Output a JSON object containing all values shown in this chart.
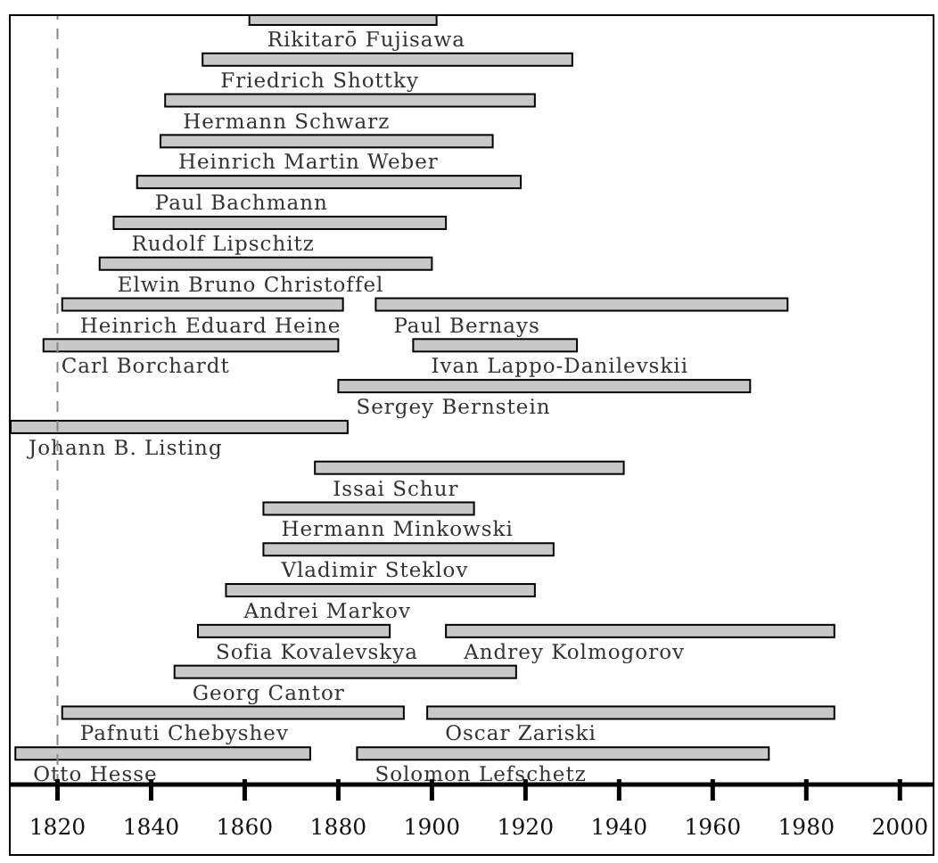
{
  "chart_data": {
    "type": "bar",
    "orientation": "horizontal",
    "categories": [
      null,
      null,
      null,
      null,
      null,
      null,
      null,
      null,
      null,
      null,
      null,
      null,
      null,
      null,
      null,
      null,
      null,
      null,
      null
    ],
    "series": [
      {
        "color": "#c8c8c8",
        "base": [
          1861,
          null,
          null,
          null,
          null,
          null,
          null,
          null,
          null,
          null,
          null,
          null,
          null,
          null,
          null,
          null,
          null,
          null,
          null
        ],
        "values": [
          40,
          null,
          null,
          null,
          null,
          null,
          null,
          null,
          null,
          null,
          null,
          null,
          null,
          null,
          null,
          null,
          null,
          null,
          null
        ],
        "value_labels": [
          "Rikitarō Fujisawa",
          null,
          null,
          null,
          null,
          null,
          null,
          null,
          null,
          null,
          null,
          null,
          null,
          null,
          null,
          null,
          null,
          null,
          null
        ]
      },
      {
        "color": "#c8c8c8",
        "base": [
          null,
          1851,
          1843,
          1842,
          1837,
          1832,
          1829,
          1821,
          1817,
          null,
          1810,
          null,
          null,
          null,
          null,
          null,
          null,
          null,
          null
        ],
        "values": [
          null,
          79,
          79,
          71,
          82,
          71,
          71,
          60,
          63,
          null,
          72,
          null,
          null,
          null,
          null,
          null,
          null,
          null,
          null
        ],
        "value_labels": [
          null,
          "Friedrich Shottky",
          "Hermann Schwarz",
          "Heinrich Martin Weber",
          "Paul Bachmann",
          "Rudolf Lipschitz",
          "Elwin Bruno Christoffel",
          "Heinrich Eduard Heine",
          "Carl Borchardt",
          null,
          "Johann B. Listing",
          null,
          null,
          null,
          null,
          null,
          null,
          null,
          null
        ]
      },
      {
        "color": "#c8c8c8",
        "base": [
          null,
          null,
          null,
          null,
          null,
          null,
          null,
          1888,
          null,
          null,
          null,
          null,
          null,
          null,
          null,
          null,
          null,
          null,
          null
        ],
        "values": [
          null,
          null,
          null,
          null,
          null,
          null,
          null,
          88,
          null,
          null,
          null,
          null,
          null,
          null,
          null,
          null,
          null,
          null,
          null
        ],
        "value_labels": [
          null,
          null,
          null,
          null,
          null,
          null,
          null,
          "Paul Bernays",
          null,
          null,
          null,
          null,
          null,
          null,
          null,
          null,
          null,
          null,
          null
        ]
      },
      {
        "color": "#c8c8c8",
        "base": [
          null,
          null,
          null,
          null,
          null,
          null,
          null,
          null,
          1896,
          1880,
          null,
          1875,
          1864,
          1864,
          1856,
          1850,
          1845,
          1821,
          1811
        ],
        "values": [
          null,
          null,
          null,
          null,
          null,
          null,
          null,
          null,
          35,
          88,
          null,
          66,
          45,
          62,
          66,
          41,
          73,
          73,
          63
        ],
        "value_labels": [
          null,
          null,
          null,
          null,
          null,
          null,
          null,
          null,
          "Ivan Lappo-Danilevskii",
          "Sergey Bernstein",
          null,
          "Issai Schur",
          "Hermann Minkowski",
          "Vladimir Steklov",
          "Andrei Markov",
          "Sofia Kovalevskya",
          "Georg Cantor",
          "Pafnuti Chebyshev",
          "Otto Hesse"
        ]
      },
      {
        "color": "#c8c8c8",
        "base": [
          null,
          null,
          null,
          null,
          null,
          null,
          null,
          null,
          null,
          null,
          null,
          null,
          null,
          null,
          null,
          1903,
          null,
          1899,
          1884
        ],
        "values": [
          null,
          null,
          null,
          null,
          null,
          null,
          null,
          null,
          null,
          null,
          null,
          null,
          null,
          null,
          null,
          83,
          null,
          87,
          88
        ],
        "value_labels": [
          null,
          null,
          null,
          null,
          null,
          null,
          null,
          null,
          null,
          null,
          null,
          null,
          null,
          null,
          null,
          "Andrey Kolmogorov",
          null,
          "Oscar Zariski",
          "Solomon Lefschetz"
        ]
      }
    ],
    "xlim": [
      1810,
      2007
    ],
    "xticks": [
      1820,
      1840,
      1860,
      1880,
      1900,
      1920,
      1940,
      1960,
      1980,
      2000
    ],
    "ref_lines": [
      {
        "axis": "x",
        "value": 1820,
        "color": "#888888",
        "line_style": "dashed"
      }
    ]
  }
}
